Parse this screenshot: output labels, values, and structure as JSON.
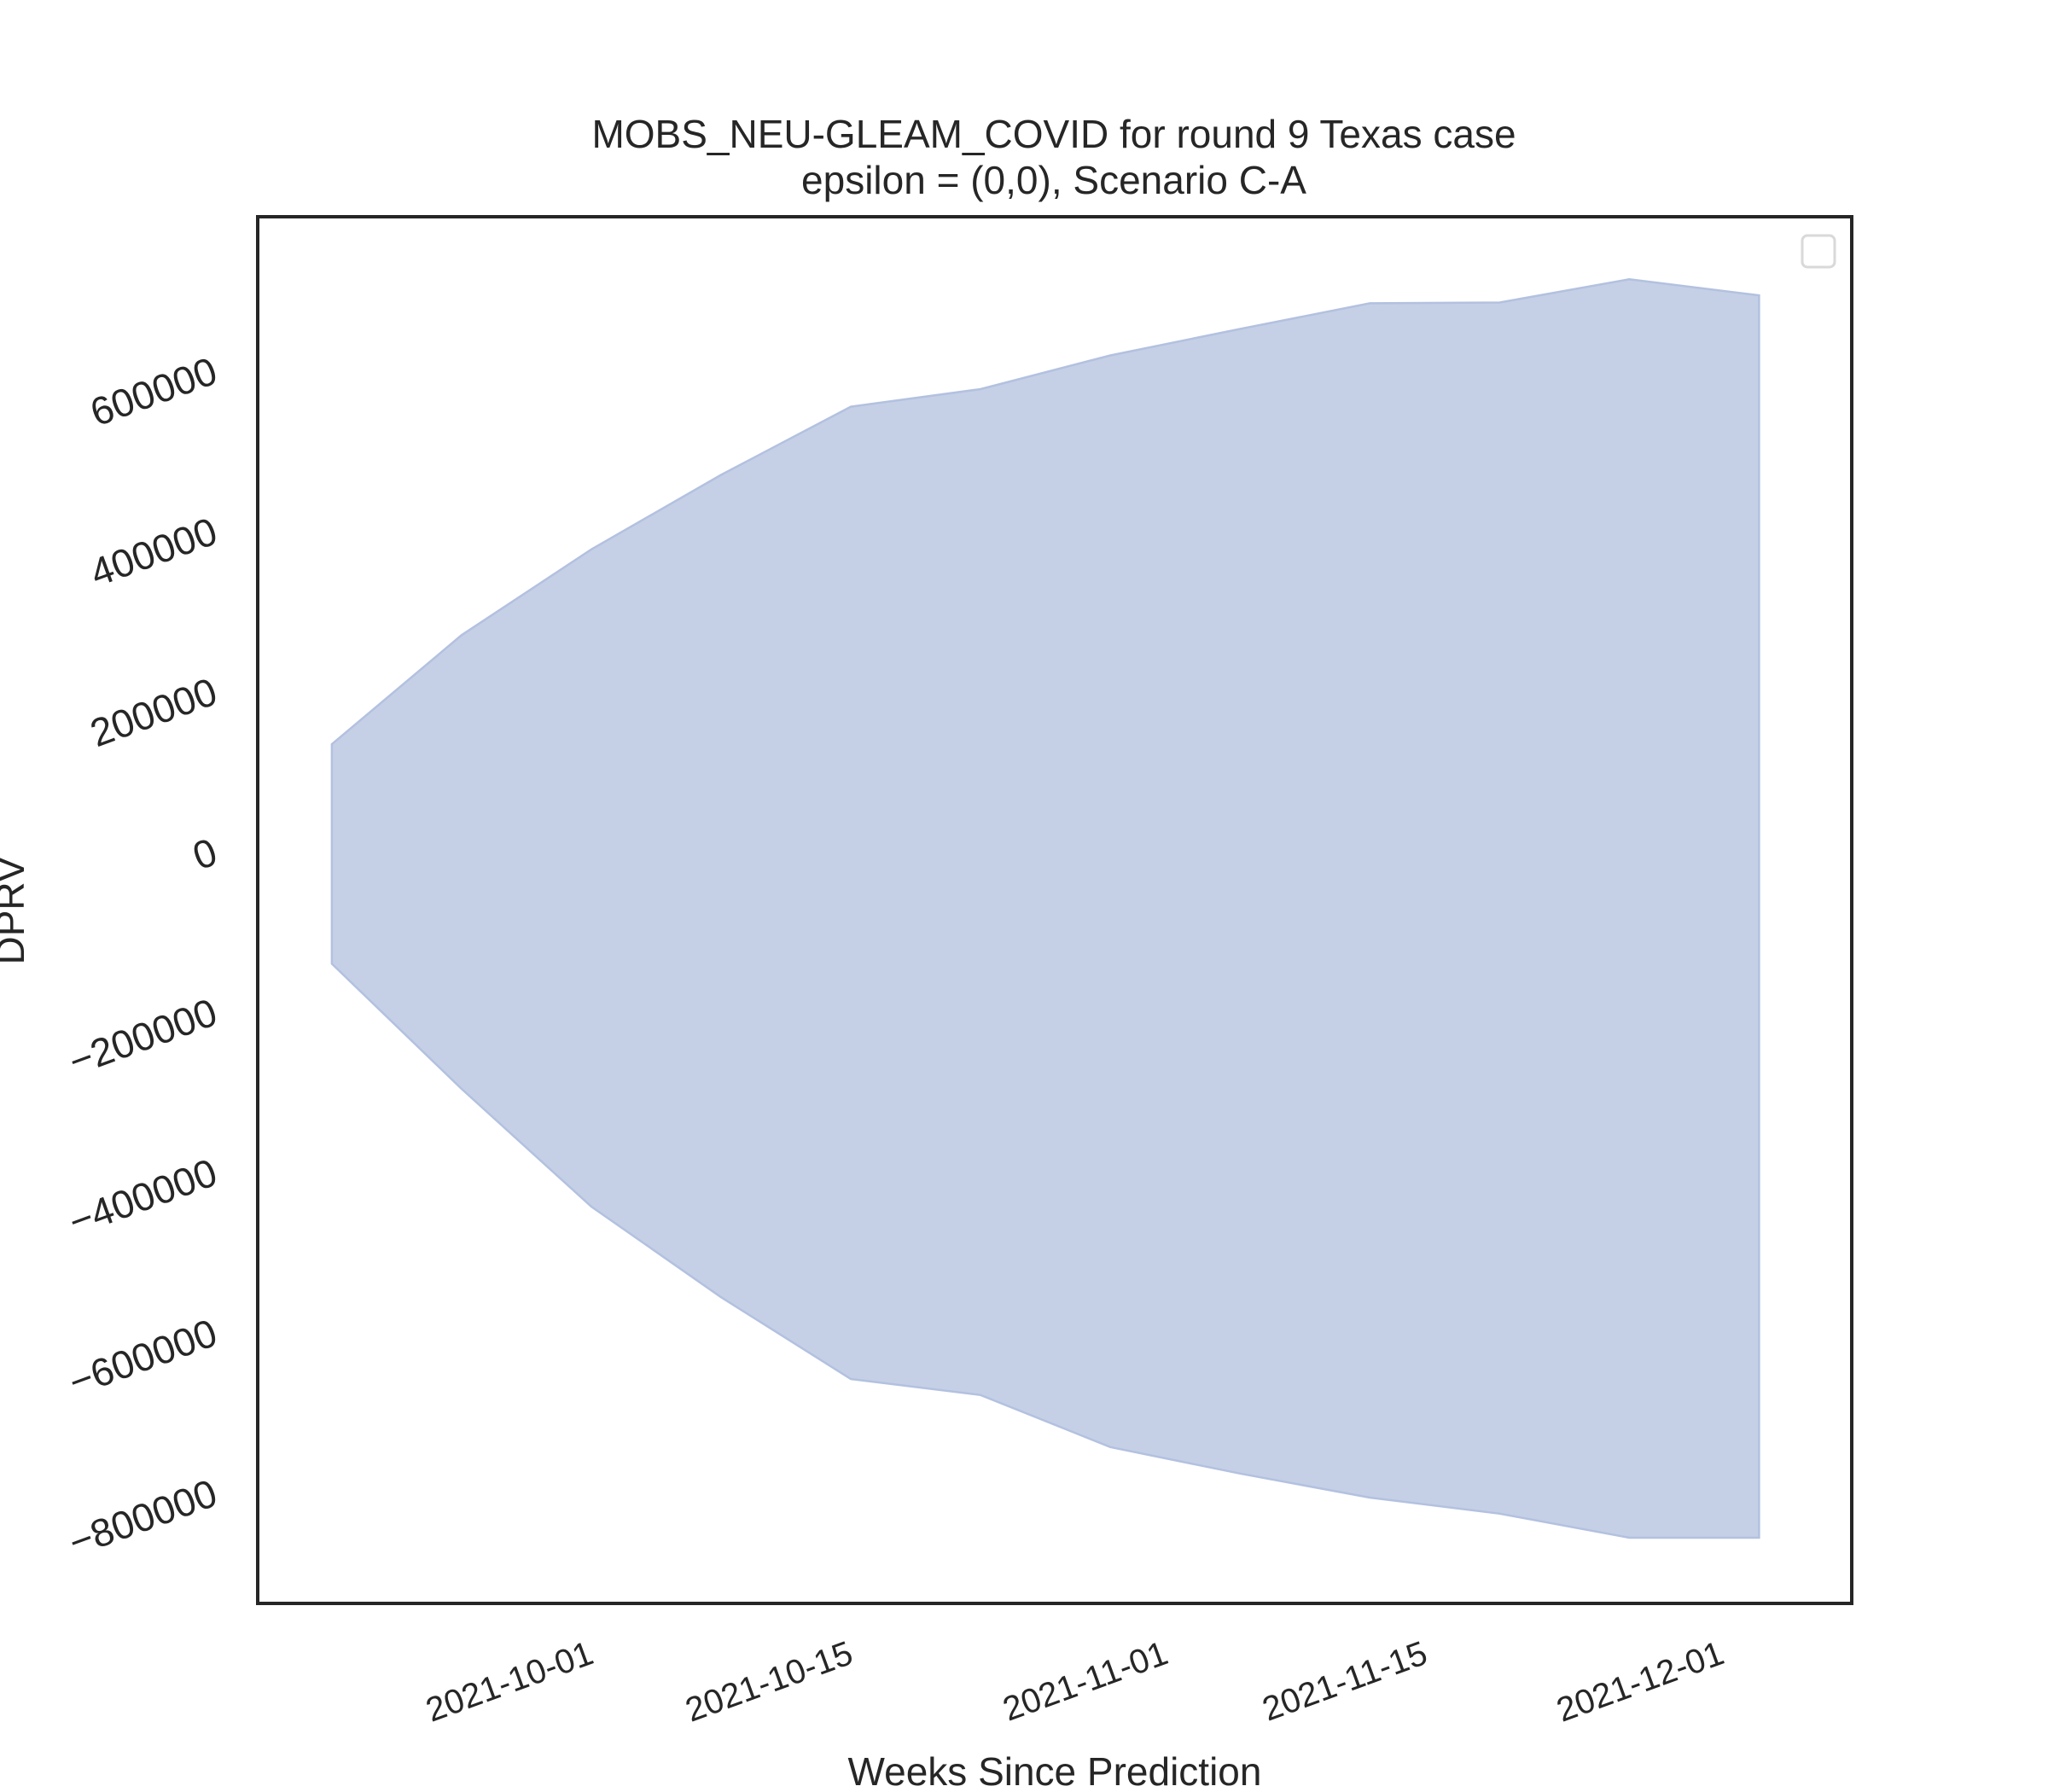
{
  "chart_data": {
    "type": "area",
    "title": "MOBS_NEU-GLEAM_COVID for round 9 Texas case",
    "subtitle": "epsilon = (0,0), Scenario C-A",
    "xlabel": "Weeks Since Prediction",
    "ylabel": "DPRV",
    "x_ticks": [
      "2021-10-01",
      "2021-10-15",
      "2021-11-01",
      "2021-11-15",
      "2021-12-01"
    ],
    "y_ticks": [
      -800000,
      -600000,
      -400000,
      -200000,
      0,
      200000,
      400000,
      600000
    ],
    "y_tick_labels": [
      "−800000",
      "−600000",
      "−400000",
      "−200000",
      "0",
      "200000",
      "400000",
      "600000"
    ],
    "xlim": [
      "2021-09-13",
      "2021-12-08"
    ],
    "ylim": [
      -940000,
      790000
    ],
    "series": [
      {
        "type": "band",
        "color": "#c5d0e6",
        "edge_color": "#b3c1e0",
        "x": [
          "2021-09-17",
          "2021-09-24",
          "2021-10-01",
          "2021-10-08",
          "2021-10-15",
          "2021-10-22",
          "2021-10-29",
          "2021-11-05",
          "2021-11-12",
          "2021-11-19",
          "2021-11-26",
          "2021-12-03"
        ],
        "upper": [
          132000,
          268000,
          375000,
          468000,
          553000,
          575000,
          617000,
          650000,
          682000,
          683000,
          712000,
          692000
        ],
        "lower": [
          -142000,
          -298000,
          -445000,
          -558000,
          -660000,
          -680000,
          -745000,
          -778000,
          -808000,
          -828000,
          -858000,
          -858000
        ]
      }
    ],
    "grid": false,
    "legend": "top-right, empty"
  },
  "colors": {
    "axes_frame": "#262626",
    "text": "#262626",
    "band_fill": "#c5d0e6",
    "band_edge": "#b3c1e0"
  }
}
